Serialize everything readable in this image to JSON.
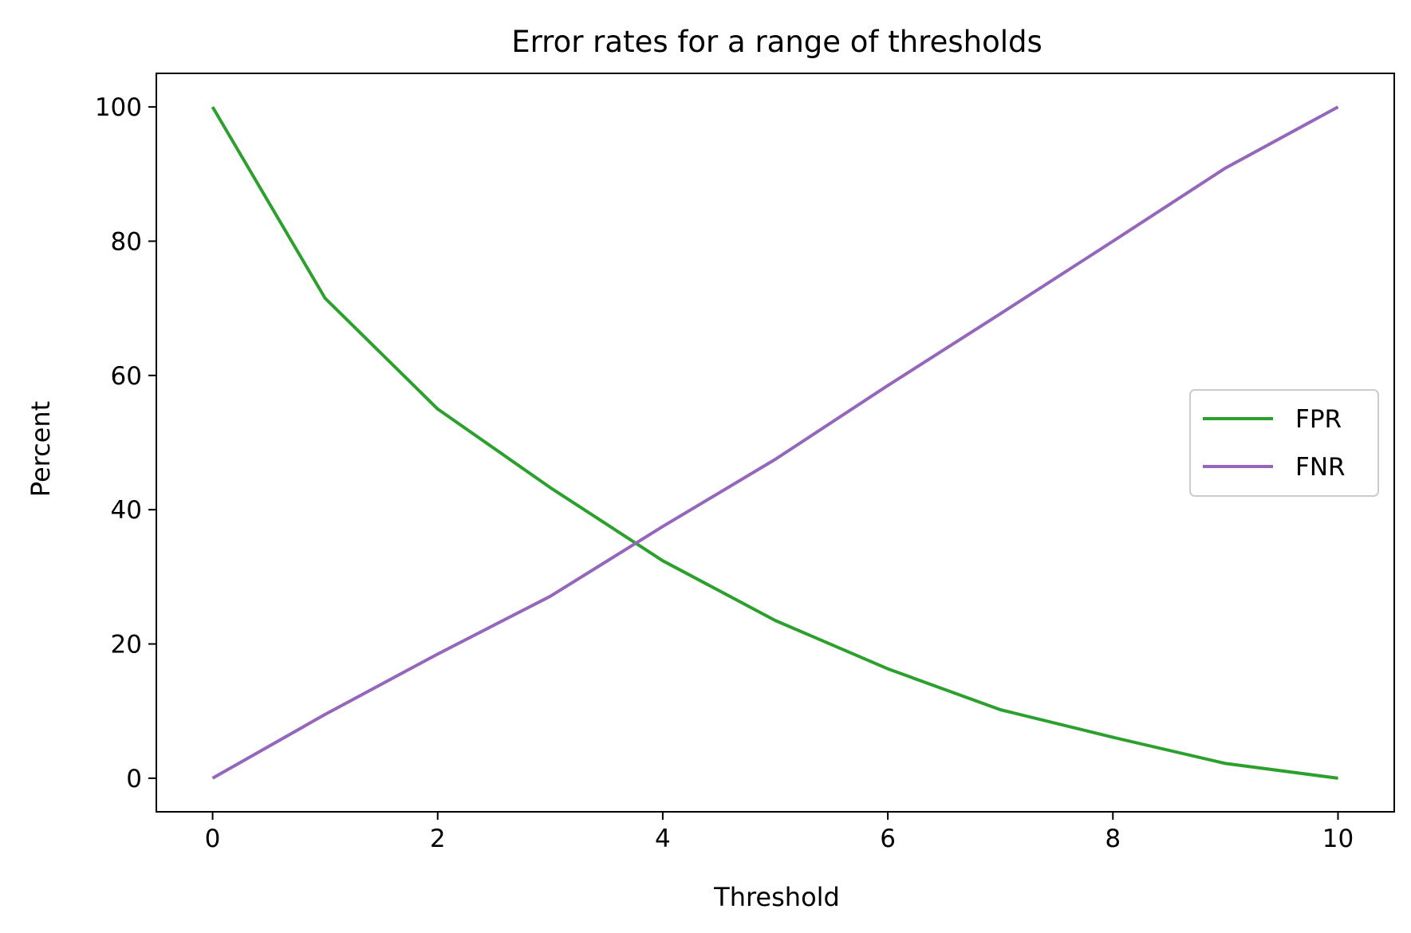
{
  "chart_data": {
    "type": "line",
    "title": "Error rates for a range of thresholds",
    "xlabel": "Threshold",
    "ylabel": "Percent",
    "xlim": [
      -0.5,
      10.5
    ],
    "ylim": [
      -5,
      105
    ],
    "xticks": [
      0,
      2,
      4,
      6,
      8,
      10
    ],
    "yticks": [
      0,
      20,
      40,
      60,
      80,
      100
    ],
    "grid": false,
    "legend": "center-right",
    "series": [
      {
        "name": "FPR",
        "color": "#2ca02c",
        "x": [
          0,
          1,
          2,
          3,
          4,
          5,
          6,
          7,
          8,
          9,
          10
        ],
        "values": [
          100,
          71.5,
          55,
          43.3,
          32.4,
          23.5,
          16.3,
          10.2,
          6.1,
          2.2,
          0
        ]
      },
      {
        "name": "FNR",
        "color": "#9467bd",
        "x": [
          0,
          1,
          2,
          3,
          4,
          5,
          6,
          7,
          8,
          9,
          10
        ],
        "values": [
          0,
          9.5,
          18.5,
          27.1,
          37.5,
          47.5,
          58.5,
          69.2,
          80,
          90.9,
          100
        ]
      }
    ]
  }
}
